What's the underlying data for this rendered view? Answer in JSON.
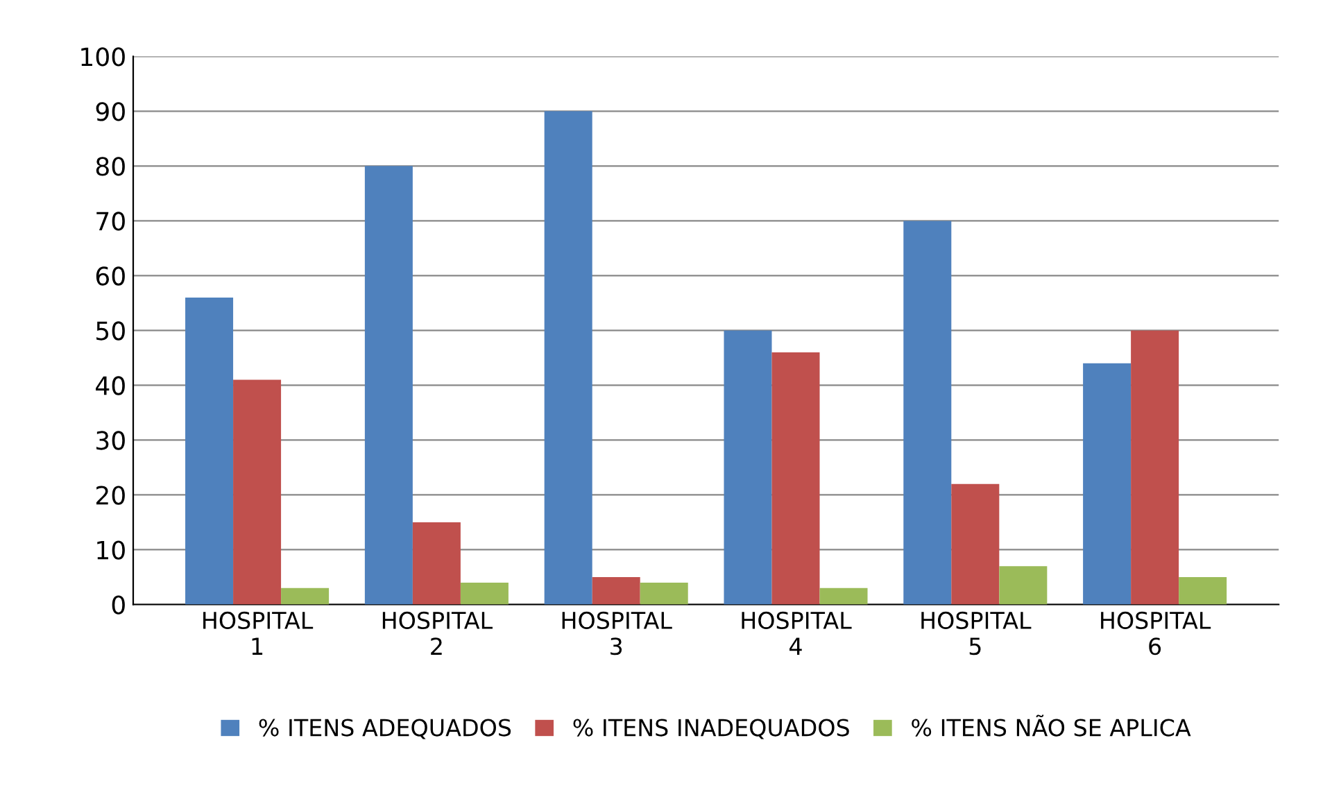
{
  "chart_data": {
    "type": "bar",
    "categories": [
      "HOSPITAL\n1",
      "HOSPITAL\n2",
      "HOSPITAL\n3",
      "HOSPITAL\n4",
      "HOSPITAL\n5",
      "HOSPITAL\n6"
    ],
    "series": [
      {
        "name": "% ITENS ADEQUADOS",
        "color": "#4f81bd",
        "values": [
          56,
          80,
          90,
          50,
          70,
          44
        ]
      },
      {
        "name": "% ITENS INADEQUADOS",
        "color": "#c0504d",
        "values": [
          41,
          15,
          5,
          46,
          22,
          50
        ]
      },
      {
        "name": "% ITENS NÃO SE APLICA",
        "color": "#9bbb59",
        "values": [
          3,
          4,
          4,
          3,
          7,
          5
        ]
      }
    ],
    "ylim": [
      0,
      100
    ],
    "yticks": [
      0,
      10,
      20,
      30,
      40,
      50,
      60,
      70,
      80,
      90,
      100
    ],
    "grid": "y",
    "legend": "bottom"
  }
}
